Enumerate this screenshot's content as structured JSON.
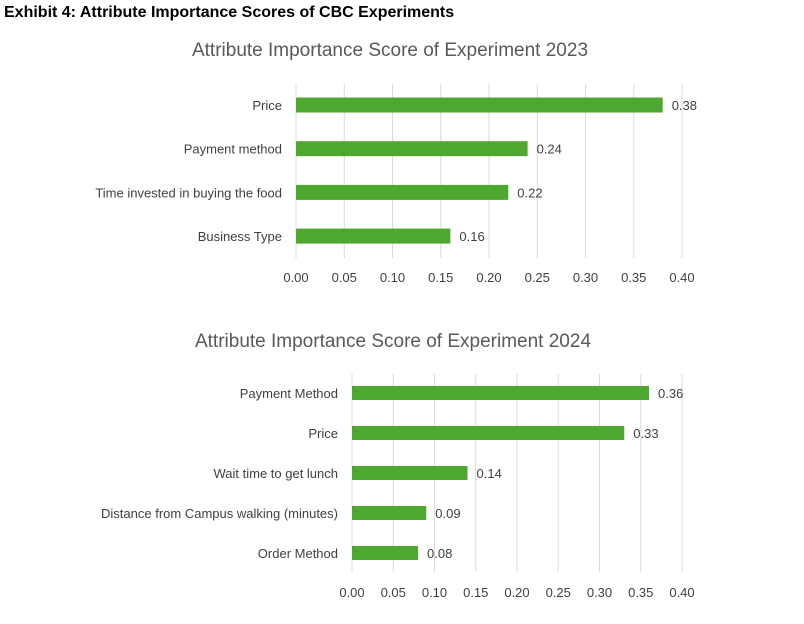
{
  "exhibit_title": "Exhibit 4: Attribute Importance Scores of CBC Experiments",
  "colors": {
    "bar": "#4ea72e",
    "grid": "#d9d9d9",
    "text": "#404040",
    "title": "#595959"
  },
  "chart_data": [
    {
      "type": "bar",
      "orientation": "horizontal",
      "title": "Attribute Importance Score of Experiment 2023",
      "categories": [
        "Price",
        "Payment method",
        "Time invested in buying the food",
        "Business Type"
      ],
      "values": [
        0.38,
        0.24,
        0.22,
        0.16
      ],
      "data_labels": [
        "0.38",
        "0.24",
        "0.22",
        "0.16"
      ],
      "xlim": [
        0,
        0.4
      ],
      "ticks": [
        "0.00",
        "0.05",
        "0.10",
        "0.15",
        "0.20",
        "0.25",
        "0.30",
        "0.35",
        "0.40"
      ],
      "grid": true,
      "legend": "none"
    },
    {
      "type": "bar",
      "orientation": "horizontal",
      "title": "Attribute Importance Score of Experiment 2024",
      "categories": [
        "Payment Method",
        "Price",
        "Wait time to get lunch",
        "Distance from Campus walking (minutes)",
        "Order Method"
      ],
      "values": [
        0.36,
        0.33,
        0.14,
        0.09,
        0.08
      ],
      "data_labels": [
        "0.36",
        "0.33",
        "0.14",
        "0.09",
        "0.08"
      ],
      "xlim": [
        0,
        0.4
      ],
      "ticks": [
        "0.00",
        "0.05",
        "0.10",
        "0.15",
        "0.20",
        "0.25",
        "0.30",
        "0.35",
        "0.40"
      ],
      "grid": true,
      "legend": "none"
    }
  ]
}
